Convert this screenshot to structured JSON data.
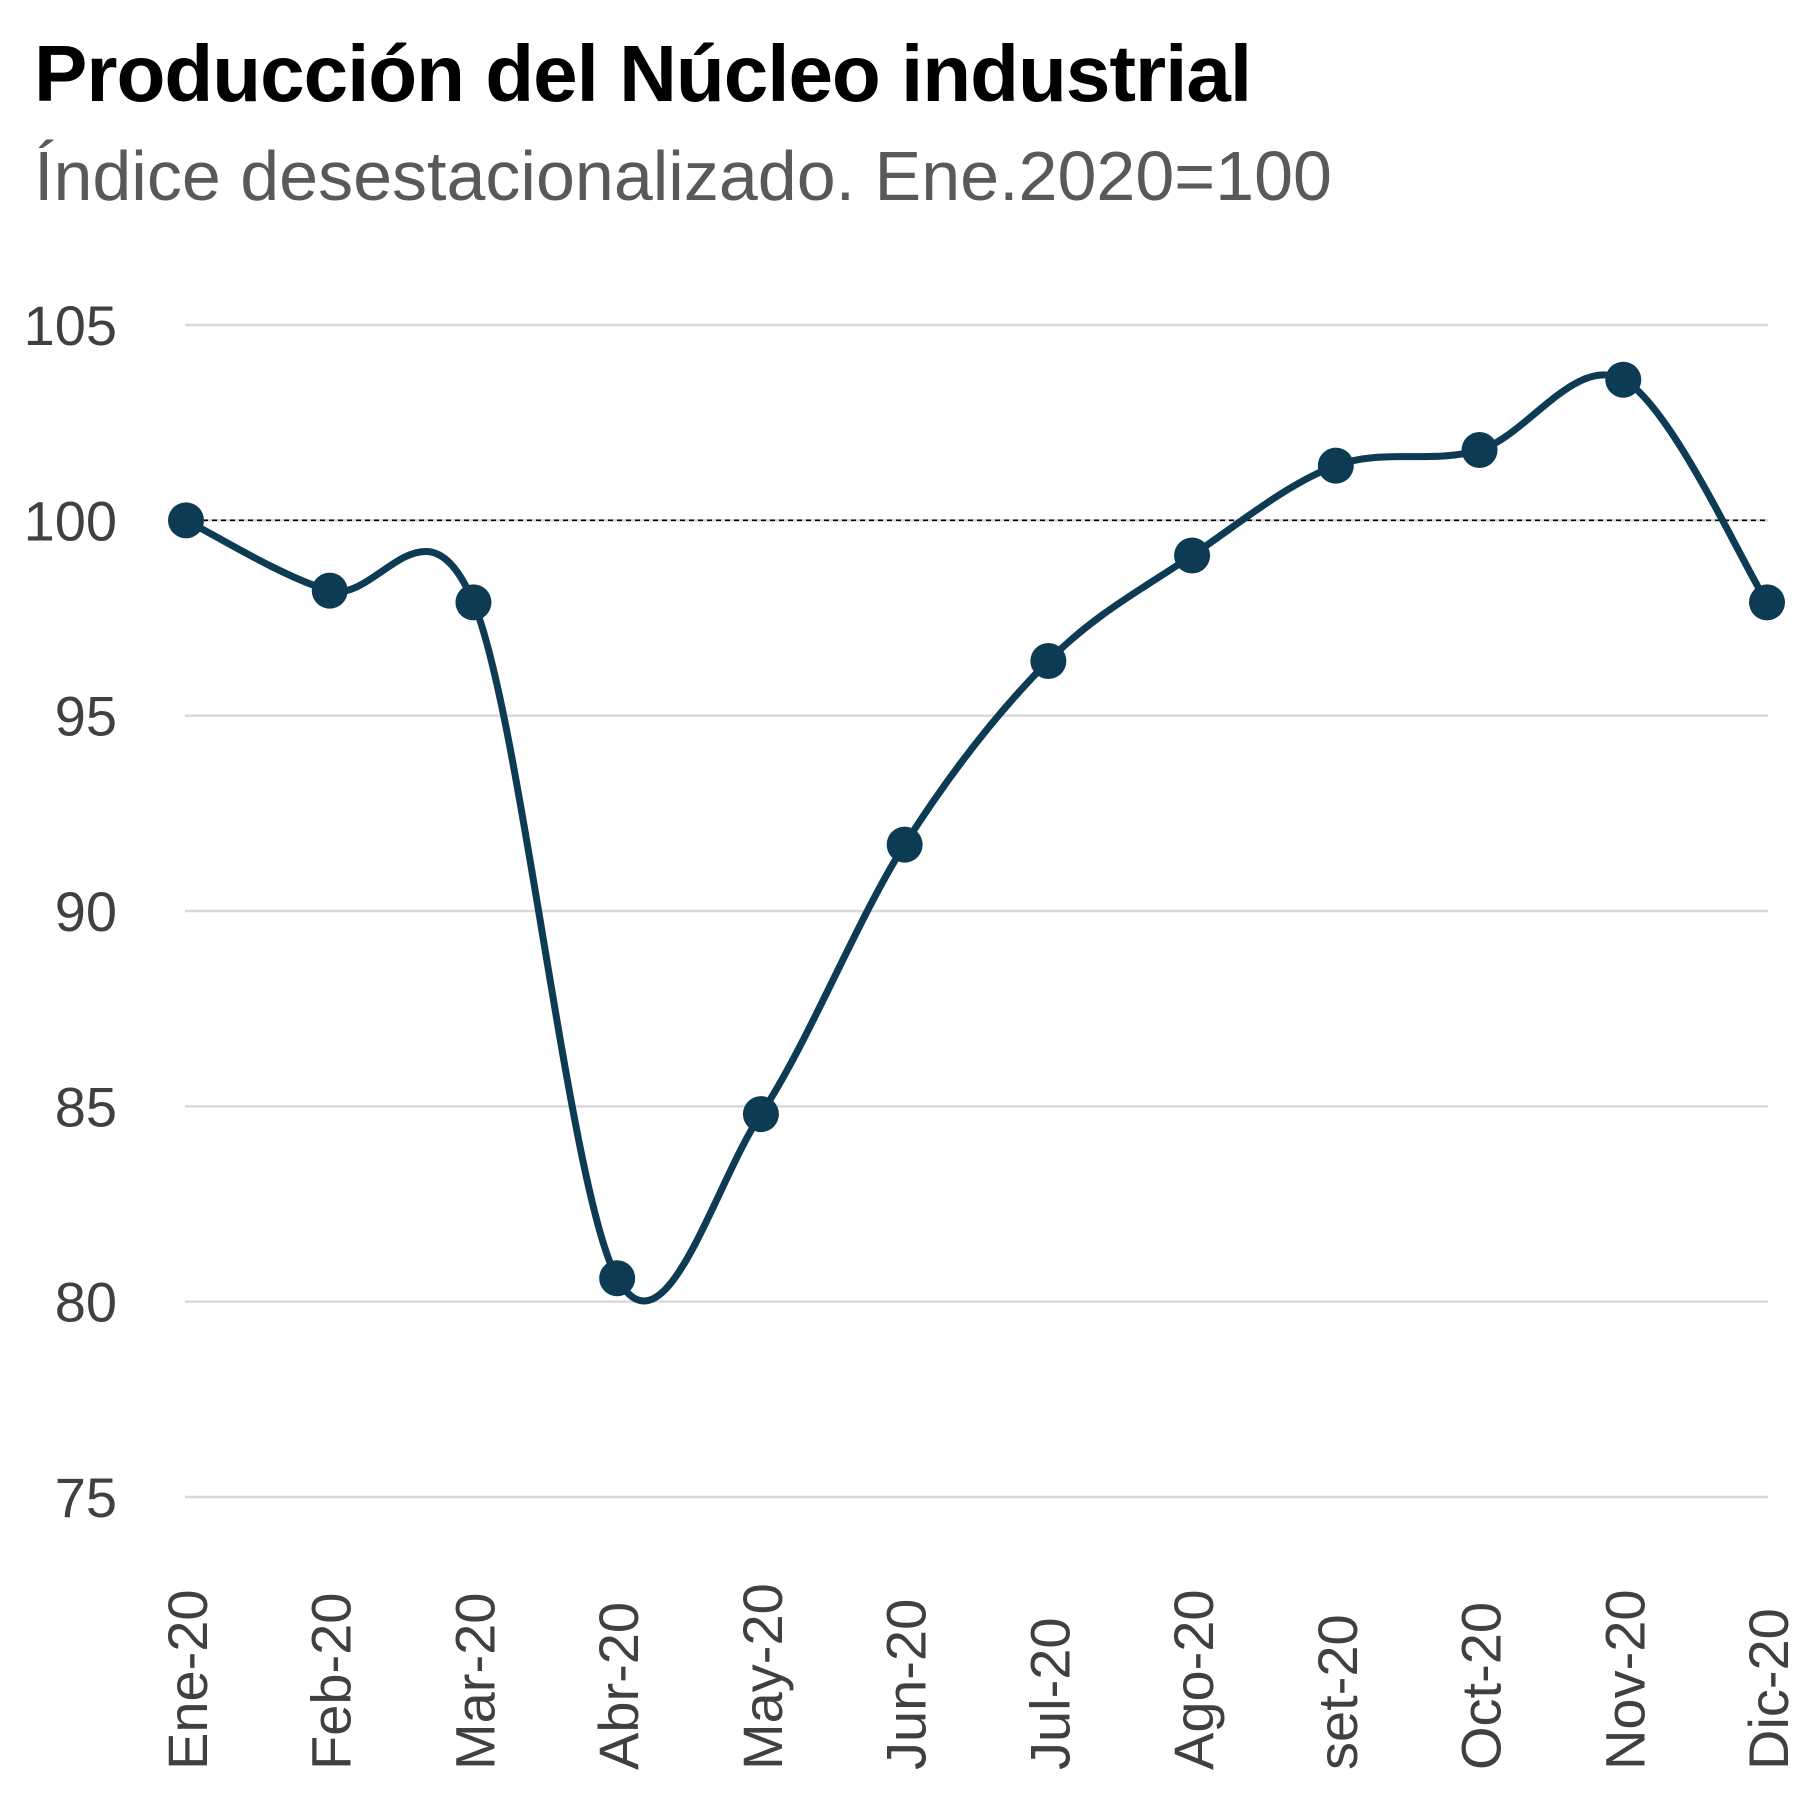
{
  "chart_data": {
    "type": "line",
    "title": "Producción del Núcleo industrial",
    "subtitle": "Índice desestacionalizado. Ene.2020=100",
    "categories": [
      "Ene-20",
      "Feb-20",
      "Mar-20",
      "Abr-20",
      "May-20",
      "Jun-20",
      "Jul-20",
      "Ago-20",
      "set-20",
      "Oct-20",
      "Nov-20",
      "Dic-20"
    ],
    "series": [
      {
        "values": [
          100.0,
          98.2,
          97.9,
          80.6,
          84.8,
          91.7,
          96.4,
          99.1,
          101.4,
          101.8,
          103.6,
          97.9
        ]
      }
    ],
    "ylim": [
      75,
      105
    ],
    "yticks": [
      75,
      80,
      85,
      90,
      95,
      100,
      105
    ],
    "reference_line": 100,
    "grid": true,
    "legend": "none",
    "colors": {
      "line": "#0d3b54",
      "grid": "#d9d9d9",
      "reference": "#000000"
    }
  }
}
